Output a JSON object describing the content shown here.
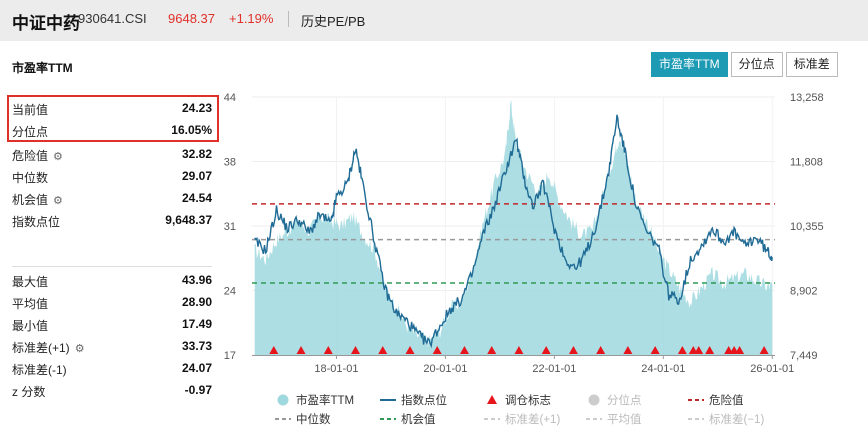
{
  "header": {
    "title": "中证中药",
    "code": "930641.CSI",
    "price": "9648.37",
    "change": "+1.19%",
    "history_link": "历史PE/PB"
  },
  "panel": {
    "title": "市盈率TTM",
    "tabs": [
      {
        "label": "市盈率TTM",
        "active": true
      },
      {
        "label": "分位点",
        "active": false
      },
      {
        "label": "标准差",
        "active": false
      }
    ]
  },
  "stats_top": [
    {
      "label": "当前值",
      "value": "24.23",
      "gear": false
    },
    {
      "label": "分位点",
      "value": "16.05%",
      "gear": false
    },
    {
      "label": "危险值",
      "value": "32.82",
      "gear": true
    },
    {
      "label": "中位数",
      "value": "29.07",
      "gear": false
    },
    {
      "label": "机会值",
      "value": "24.54",
      "gear": true
    },
    {
      "label": "指数点位",
      "value": "9,648.37",
      "gear": false
    }
  ],
  "stats_bottom": [
    {
      "label": "最大值",
      "value": "43.96",
      "gear": false
    },
    {
      "label": "平均值",
      "value": "28.90",
      "gear": false
    },
    {
      "label": "最小值",
      "value": "17.49",
      "gear": false
    },
    {
      "label": "标准差(+1)",
      "value": "33.73",
      "gear": true
    },
    {
      "label": "标准差(-1)",
      "value": "24.07",
      "gear": false
    },
    {
      "label": "z 分数",
      "value": "-0.97",
      "gear": false
    }
  ],
  "colors": {
    "area": "#9fd8de",
    "line": "#1f6b95",
    "danger": "#c0282a",
    "median": "#999999",
    "opportunity": "#2e9a55",
    "marker": "#e8141c",
    "accent": "#1d9ab4",
    "up": "#e0302a"
  },
  "chart_data": {
    "type": "area+line",
    "x_ticks": [
      "18-01-01",
      "20-01-01",
      "22-01-01",
      "24-01-01",
      "26-01-01"
    ],
    "x_range": [
      "2016-06",
      "2026-01"
    ],
    "y_left": {
      "ticks": [
        "44",
        "38",
        "31",
        "24",
        "17"
      ],
      "range": [
        17,
        44
      ]
    },
    "y_right": {
      "ticks": [
        "13,258",
        "11,808",
        "10,355",
        "8,902",
        "7,449"
      ],
      "range": [
        7449,
        13258
      ]
    },
    "reference_lines": {
      "danger": 32.82,
      "median": 29.07,
      "opportunity": 24.54
    },
    "pe_ttm": [
      [
        2016.5,
        28
      ],
      [
        2016.7,
        27
      ],
      [
        2016.9,
        29
      ],
      [
        2017.1,
        30
      ],
      [
        2017.3,
        31
      ],
      [
        2017.5,
        30
      ],
      [
        2017.7,
        31.5
      ],
      [
        2017.9,
        31
      ],
      [
        2018.1,
        30.5
      ],
      [
        2018.3,
        31.5
      ],
      [
        2018.5,
        29.5
      ],
      [
        2018.7,
        28
      ],
      [
        2018.9,
        24
      ],
      [
        2019.1,
        22
      ],
      [
        2019.3,
        20
      ],
      [
        2019.5,
        19
      ],
      [
        2019.7,
        18.5
      ],
      [
        2019.9,
        19.5
      ],
      [
        2020.1,
        22
      ],
      [
        2020.3,
        22.5
      ],
      [
        2020.5,
        26
      ],
      [
        2020.7,
        31
      ],
      [
        2020.9,
        35
      ],
      [
        2021.1,
        38
      ],
      [
        2021.2,
        43.5
      ],
      [
        2021.3,
        39
      ],
      [
        2021.5,
        36
      ],
      [
        2021.7,
        34
      ],
      [
        2021.9,
        36
      ],
      [
        2022.1,
        33
      ],
      [
        2022.3,
        31
      ],
      [
        2022.5,
        29.5
      ],
      [
        2022.7,
        30
      ],
      [
        2022.9,
        34
      ],
      [
        2023.1,
        38
      ],
      [
        2023.2,
        40
      ],
      [
        2023.35,
        37
      ],
      [
        2023.5,
        33
      ],
      [
        2023.7,
        31
      ],
      [
        2023.9,
        28
      ],
      [
        2024.1,
        26
      ],
      [
        2024.3,
        24
      ],
      [
        2024.5,
        22.5
      ],
      [
        2024.7,
        24
      ],
      [
        2024.9,
        25.5
      ],
      [
        2025.1,
        24.5
      ],
      [
        2025.3,
        25
      ],
      [
        2025.5,
        25.5
      ],
      [
        2025.7,
        24.8
      ],
      [
        2025.9,
        24.2
      ],
      [
        2026.0,
        24.23
      ]
    ],
    "index_points": [
      [
        2016.5,
        10000
      ],
      [
        2016.7,
        9800
      ],
      [
        2016.9,
        10700
      ],
      [
        2017.1,
        10300
      ],
      [
        2017.3,
        10500
      ],
      [
        2017.5,
        10200
      ],
      [
        2017.7,
        10600
      ],
      [
        2017.9,
        10400
      ],
      [
        2018.0,
        11000
      ],
      [
        2018.2,
        11300
      ],
      [
        2018.35,
        12100
      ],
      [
        2018.5,
        11200
      ],
      [
        2018.7,
        10000
      ],
      [
        2018.9,
        8900
      ],
      [
        2019.1,
        8400
      ],
      [
        2019.3,
        8200
      ],
      [
        2019.5,
        7900
      ],
      [
        2019.7,
        7700
      ],
      [
        2019.9,
        8100
      ],
      [
        2020.1,
        8500
      ],
      [
        2020.3,
        8700
      ],
      [
        2020.5,
        9300
      ],
      [
        2020.7,
        10200
      ],
      [
        2020.9,
        10800
      ],
      [
        2021.1,
        11600
      ],
      [
        2021.3,
        12300
      ],
      [
        2021.45,
        11400
      ],
      [
        2021.6,
        10800
      ],
      [
        2021.8,
        11300
      ],
      [
        2022.0,
        10300
      ],
      [
        2022.2,
        9600
      ],
      [
        2022.4,
        9400
      ],
      [
        2022.6,
        9800
      ],
      [
        2022.8,
        10500
      ],
      [
        2023.0,
        11600
      ],
      [
        2023.15,
        12800
      ],
      [
        2023.3,
        12000
      ],
      [
        2023.5,
        10800
      ],
      [
        2023.7,
        10200
      ],
      [
        2023.9,
        9900
      ],
      [
        2024.1,
        8800
      ],
      [
        2024.3,
        8700
      ],
      [
        2024.5,
        9600
      ],
      [
        2024.7,
        9900
      ],
      [
        2024.9,
        10300
      ],
      [
        2025.1,
        10000
      ],
      [
        2025.3,
        10200
      ],
      [
        2025.5,
        9900
      ],
      [
        2025.7,
        10100
      ],
      [
        2025.9,
        9800
      ],
      [
        2026.0,
        9648.37
      ]
    ],
    "rebalance_markers": [
      2016.85,
      2017.35,
      2017.85,
      2018.35,
      2018.85,
      2019.35,
      2019.85,
      2020.35,
      2020.85,
      2021.35,
      2021.85,
      2022.35,
      2022.85,
      2023.35,
      2023.85,
      2024.35,
      2024.55,
      2024.65,
      2024.85,
      2025.2,
      2025.3,
      2025.4,
      2025.85
    ],
    "legend": [
      {
        "label": "市盈率TTM",
        "kind": "circle",
        "active": true
      },
      {
        "label": "指数点位",
        "kind": "line",
        "active": true
      },
      {
        "label": "调仓标志",
        "kind": "triangle",
        "active": true
      },
      {
        "label": "分位点",
        "kind": "circle",
        "active": false
      },
      {
        "label": "危险值",
        "kind": "dash-red",
        "active": true
      },
      {
        "label": "中位数",
        "kind": "dash-gray",
        "active": true
      },
      {
        "label": "机会值",
        "kind": "dash-green",
        "active": true
      },
      {
        "label": "标准差(+1)",
        "kind": "dash-light",
        "active": false
      },
      {
        "label": "平均值",
        "kind": "dash-light",
        "active": false
      },
      {
        "label": "标准差(−1)",
        "kind": "dash-light",
        "active": false
      }
    ]
  }
}
